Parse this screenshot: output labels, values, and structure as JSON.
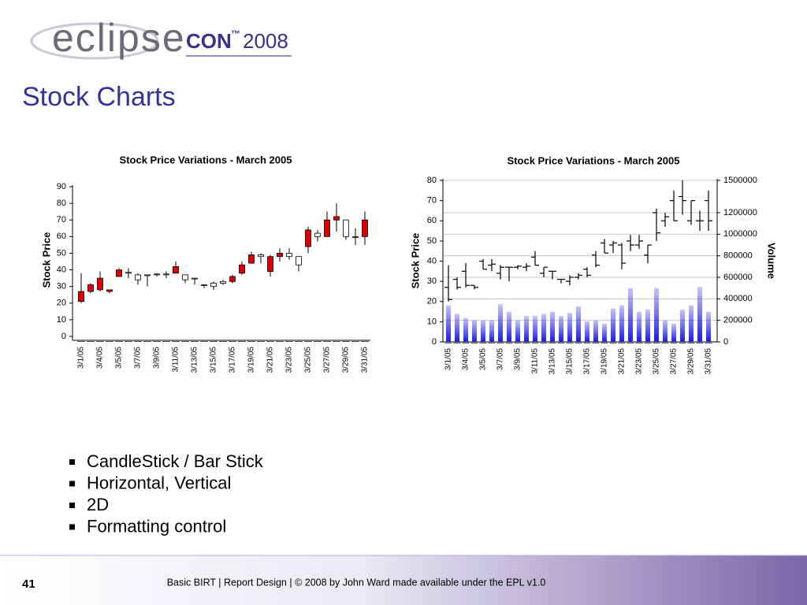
{
  "header": {
    "logo": {
      "name": "eclipse",
      "con": "CON",
      "tm": "™",
      "year": "2008"
    },
    "title": "Stock Charts"
  },
  "chart_data": [
    {
      "type": "candlestick",
      "title": "Stock Price Variations - March 2005",
      "ylabel": "Stock Price",
      "categories": [
        "3/1/05",
        null,
        "3/4/05",
        null,
        "3/5/05",
        null,
        "3/7/05",
        null,
        "3/9/05",
        null,
        "3/11/05",
        null,
        "3/13/05",
        null,
        "3/15/05",
        null,
        "3/17/05",
        null,
        "3/19/05",
        null,
        "3/21/05",
        null,
        "3/23/05",
        null,
        "3/25/05",
        null,
        "3/27/05",
        null,
        "3/29/05",
        null,
        "3/31/05"
      ],
      "open": [
        27,
        31,
        35,
        28,
        40,
        38,
        34,
        37,
        37,
        37,
        42,
        34,
        35,
        31,
        30,
        32,
        36,
        43,
        49,
        48,
        48,
        50,
        48,
        43,
        64,
        60,
        70,
        72,
        60,
        60,
        70
      ],
      "high": [
        38,
        32,
        39,
        28,
        41,
        41,
        38,
        37,
        38,
        39,
        45,
        37,
        35,
        31,
        33,
        34,
        37,
        45,
        51,
        50,
        49,
        53,
        53,
        48,
        66,
        64,
        75,
        80,
        70,
        65,
        75
      ],
      "low": [
        20,
        26,
        27,
        26,
        36,
        35,
        31,
        30,
        36,
        35,
        38,
        32,
        31,
        29,
        28,
        31,
        32,
        37,
        44,
        44,
        36,
        45,
        46,
        39,
        50,
        57,
        60,
        63,
        58,
        55,
        55
      ],
      "close": [
        21,
        27,
        28,
        27,
        36,
        38.5,
        37,
        37,
        37.5,
        37.5,
        38,
        37,
        35,
        31,
        32,
        33,
        33,
        38,
        44,
        49,
        39,
        48,
        50,
        48,
        54,
        62,
        60,
        70,
        70,
        60,
        60
      ],
      "up_color": "#ffffff",
      "down_color": "#dd0000",
      "ylim": [
        0,
        90
      ],
      "yticks": [
        0,
        10,
        20,
        30,
        40,
        50,
        60,
        70,
        80,
        90
      ]
    },
    {
      "type": "ohlc",
      "title": "Stock Price Variations - March 2005",
      "ylabel": "Stock Price",
      "y2label": "Volume",
      "categories": [
        "3/1/05",
        null,
        "3/4/05",
        null,
        "3/5/05",
        null,
        "3/7/05",
        null,
        "3/9/05",
        null,
        "3/11/05",
        null,
        "3/13/05",
        null,
        "3/15/05",
        null,
        "3/17/05",
        null,
        "3/19/05",
        null,
        "3/21/05",
        null,
        "3/23/05",
        null,
        "3/25/05",
        null,
        "3/27/05",
        null,
        "3/29/05",
        null,
        "3/31/05"
      ],
      "open": [
        27,
        31,
        35,
        28,
        40,
        38,
        34,
        37,
        37,
        37,
        42,
        34,
        35,
        31,
        30,
        32,
        36,
        43,
        49,
        48,
        48,
        50,
        48,
        43,
        64,
        60,
        70,
        72,
        60,
        60,
        70
      ],
      "high": [
        38,
        32,
        39,
        28,
        41,
        41,
        38,
        37,
        38,
        39,
        45,
        37,
        35,
        31,
        33,
        34,
        37,
        45,
        51,
        50,
        49,
        53,
        53,
        48,
        66,
        64,
        75,
        80,
        70,
        65,
        75
      ],
      "low": [
        20,
        26,
        27,
        26,
        36,
        35,
        31,
        30,
        36,
        35,
        38,
        32,
        31,
        29,
        28,
        31,
        32,
        37,
        44,
        44,
        36,
        45,
        46,
        39,
        50,
        57,
        60,
        63,
        58,
        55,
        55
      ],
      "close": [
        21,
        27,
        28,
        27,
        36,
        38.5,
        37,
        37,
        37.5,
        37.5,
        38,
        37,
        35,
        31,
        32,
        33,
        33,
        38,
        44,
        49,
        39,
        48,
        50,
        48,
        54,
        62,
        60,
        70,
        70,
        60,
        60
      ],
      "color": "#000000",
      "volume": [
        340000,
        260000,
        220000,
        200000,
        200000,
        200000,
        350000,
        280000,
        200000,
        240000,
        240000,
        260000,
        280000,
        240000,
        270000,
        330000,
        190000,
        200000,
        170000,
        310000,
        340000,
        500000,
        280000,
        300000,
        500000,
        200000,
        170000,
        300000,
        340000,
        510000,
        280000
      ],
      "volume_color": "#1a1ae6",
      "ylim": [
        0,
        80
      ],
      "yticks": [
        0,
        10,
        20,
        30,
        40,
        50,
        60,
        70,
        80
      ],
      "y2lim": [
        0,
        1500000
      ],
      "y2ticks": [
        0,
        200000,
        400000,
        600000,
        800000,
        1000000,
        1200000,
        1500000
      ],
      "grid": "y2"
    }
  ],
  "bullets": [
    "CandleStick / Bar Stick",
    "Horizontal, Vertical",
    "2D",
    "Formatting control"
  ],
  "footer": {
    "page": "41",
    "text": "Basic BIRT  |  Report Design  |  © 2008 by John Ward made available under the EPL v1.0"
  }
}
